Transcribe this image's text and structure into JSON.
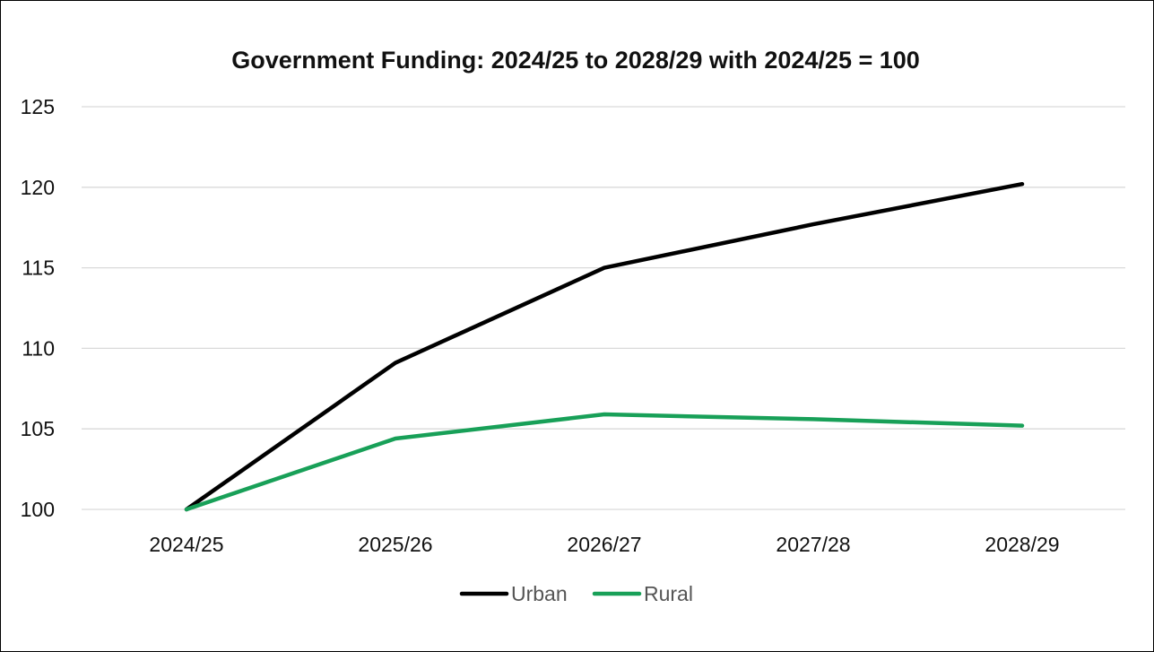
{
  "chart_data": {
    "type": "line",
    "title": "Government Funding: 2024/25 to 2028/29 with 2024/25 = 100",
    "xlabel": "",
    "ylabel": "",
    "categories": [
      "2024/25",
      "2025/26",
      "2026/27",
      "2027/28",
      "2028/29"
    ],
    "ylim": [
      100,
      125
    ],
    "yticks": [
      "100",
      "105",
      "110",
      "115",
      "120",
      "125"
    ],
    "grid": true,
    "legend_position": "bottom",
    "series": [
      {
        "name": "Urban",
        "color": "#000000",
        "values": [
          100,
          109.1,
          115.0,
          117.7,
          120.2
        ]
      },
      {
        "name": "Rural",
        "color": "#18a058",
        "values": [
          100,
          104.4,
          105.9,
          105.6,
          105.2
        ]
      }
    ]
  }
}
